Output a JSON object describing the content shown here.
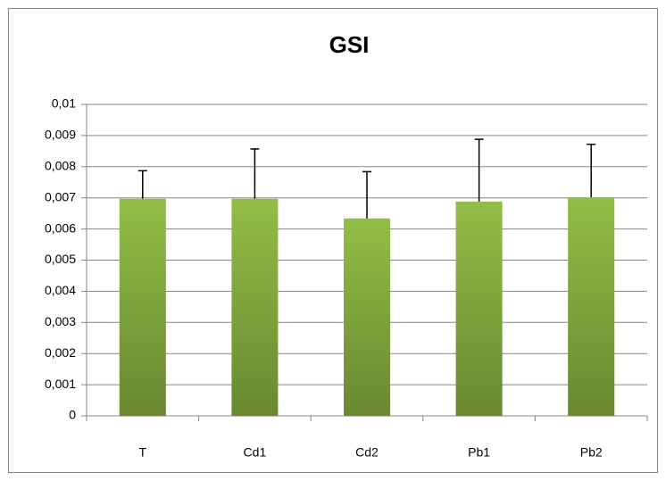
{
  "chart_data": {
    "type": "bar",
    "title": "GSI",
    "categories": [
      "T",
      "Cd1",
      "Cd2",
      "Pb1",
      "Pb2"
    ],
    "values": [
      0.00697,
      0.00697,
      0.00634,
      0.00688,
      0.00702
    ],
    "errors": [
      0.0009,
      0.0016,
      0.0015,
      0.002,
      0.0017
    ],
    "color": "#92bd45",
    "ylim": [
      0,
      0.01
    ],
    "yticks": [
      0,
      {
        "value": 0.001,
        "label": "0,001"
      },
      {
        "value": 0.002,
        "label": "0,002"
      },
      {
        "value": 0.003,
        "label": "0,003"
      },
      {
        "value": 0.004,
        "label": "0,004"
      },
      {
        "value": 0.005,
        "label": "0,005"
      },
      {
        "value": 0.006,
        "label": "0,006"
      },
      {
        "value": 0.007,
        "label": "0,007"
      },
      {
        "value": 0.008,
        "label": "0,008"
      },
      {
        "value": 0.009,
        "label": "0,009"
      },
      {
        "value": 0.01,
        "label": "0,01"
      }
    ],
    "grid": true
  }
}
